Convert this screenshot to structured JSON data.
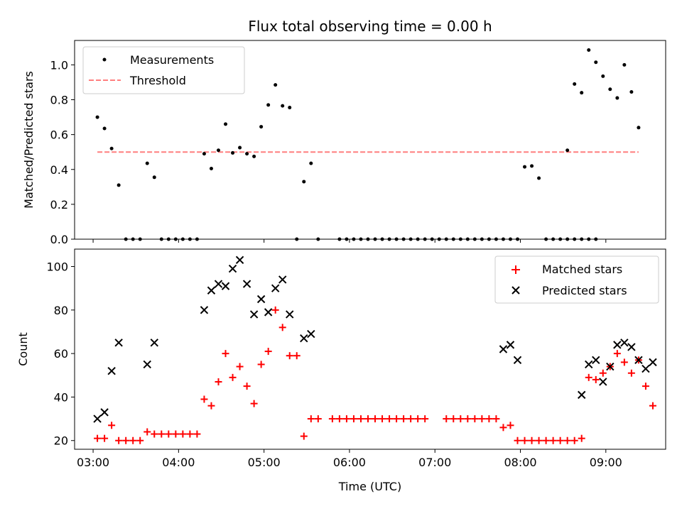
{
  "chart_data": [
    {
      "type": "scatter",
      "title": "Flux total observing time = 0.00 h",
      "xlabel": "",
      "ylabel": "Matched/Predicted stars",
      "x_unit": "time of day (UTC)",
      "xlim": [
        "02:47",
        "09:42"
      ],
      "ylim": [
        0,
        1.14
      ],
      "yticks": [
        "0.0",
        "0.2",
        "0.4",
        "0.6",
        "0.8",
        "1.0"
      ],
      "legend_position": "upper-left",
      "threshold": {
        "name": "Threshold",
        "value": 0.5,
        "color": "#ff7f7f",
        "style": "dashed",
        "x_range": [
          "03:03",
          "09:23"
        ]
      },
      "series": [
        {
          "name": "Measurements",
          "color": "#000000",
          "marker": "dot",
          "points": [
            [
              "03:03",
              0.7
            ],
            [
              "03:08",
              0.635
            ],
            [
              "03:13",
              0.52
            ],
            [
              "03:18",
              0.31
            ],
            [
              "03:23",
              0.0
            ],
            [
              "03:28",
              0.0
            ],
            [
              "03:33",
              0.0
            ],
            [
              "03:38",
              0.435
            ],
            [
              "03:43",
              0.355
            ],
            [
              "03:48",
              0.0
            ],
            [
              "03:53",
              0.0
            ],
            [
              "03:58",
              0.0
            ],
            [
              "04:03",
              0.0
            ],
            [
              "04:08",
              0.0
            ],
            [
              "04:13",
              0.0
            ],
            [
              "04:18",
              0.49
            ],
            [
              "04:23",
              0.405
            ],
            [
              "04:28",
              0.51
            ],
            [
              "04:33",
              0.66
            ],
            [
              "04:38",
              0.495
            ],
            [
              "04:43",
              0.525
            ],
            [
              "04:48",
              0.49
            ],
            [
              "04:53",
              0.475
            ],
            [
              "04:58",
              0.645
            ],
            [
              "05:03",
              0.77
            ],
            [
              "05:08",
              0.885
            ],
            [
              "05:13",
              0.765
            ],
            [
              "05:18",
              0.755
            ],
            [
              "05:23",
              0.0
            ],
            [
              "05:28",
              0.33
            ],
            [
              "05:33",
              0.435
            ],
            [
              "05:38",
              0.0
            ],
            [
              "05:53",
              0.0
            ],
            [
              "05:58",
              0.0
            ],
            [
              "06:03",
              0.0
            ],
            [
              "06:08",
              0.0
            ],
            [
              "06:13",
              0.0
            ],
            [
              "06:18",
              0.0
            ],
            [
              "06:23",
              0.0
            ],
            [
              "06:28",
              0.0
            ],
            [
              "06:33",
              0.0
            ],
            [
              "06:38",
              0.0
            ],
            [
              "06:43",
              0.0
            ],
            [
              "06:48",
              0.0
            ],
            [
              "06:53",
              0.0
            ],
            [
              "06:58",
              0.0
            ],
            [
              "07:03",
              0.0
            ],
            [
              "07:08",
              0.0
            ],
            [
              "07:13",
              0.0
            ],
            [
              "07:18",
              0.0
            ],
            [
              "07:23",
              0.0
            ],
            [
              "07:28",
              0.0
            ],
            [
              "07:33",
              0.0
            ],
            [
              "07:38",
              0.0
            ],
            [
              "07:43",
              0.0
            ],
            [
              "07:48",
              0.0
            ],
            [
              "07:53",
              0.0
            ],
            [
              "07:58",
              0.0
            ],
            [
              "08:03",
              0.415
            ],
            [
              "08:08",
              0.42
            ],
            [
              "08:13",
              0.35
            ],
            [
              "08:18",
              0.0
            ],
            [
              "08:23",
              0.0
            ],
            [
              "08:28",
              0.0
            ],
            [
              "08:33",
              0.0
            ],
            [
              "08:38",
              0.0
            ],
            [
              "08:43",
              0.0
            ],
            [
              "08:48",
              0.0
            ],
            [
              "08:53",
              0.0
            ],
            [
              "08:33",
              0.51
            ],
            [
              "08:38",
              0.89
            ],
            [
              "08:43",
              0.84
            ],
            [
              "08:48",
              1.085
            ],
            [
              "08:53",
              1.015
            ],
            [
              "08:58",
              0.935
            ],
            [
              "09:03",
              0.86
            ],
            [
              "09:08",
              0.81
            ],
            [
              "09:13",
              1.0
            ],
            [
              "09:18",
              0.845
            ],
            [
              "09:23",
              0.64
            ]
          ]
        }
      ]
    },
    {
      "type": "scatter",
      "title": "",
      "xlabel": "Time (UTC)",
      "ylabel": "Count",
      "x_unit": "time of day (UTC)",
      "xlim": [
        "02:47",
        "09:42"
      ],
      "ylim": [
        16,
        108
      ],
      "xticks": [
        "03:00",
        "04:00",
        "05:00",
        "06:00",
        "07:00",
        "08:00",
        "09:00"
      ],
      "yticks": [
        "20",
        "40",
        "60",
        "80",
        "100"
      ],
      "legend_position": "upper-right",
      "series": [
        {
          "name": "Matched stars",
          "color": "#ff0000",
          "marker": "plus",
          "points": [
            [
              "03:03",
              21
            ],
            [
              "03:08",
              21
            ],
            [
              "03:13",
              27
            ],
            [
              "03:18",
              20
            ],
            [
              "03:23",
              20
            ],
            [
              "03:28",
              20
            ],
            [
              "03:33",
              20
            ],
            [
              "03:38",
              24
            ],
            [
              "03:43",
              23
            ],
            [
              "03:48",
              23
            ],
            [
              "03:53",
              23
            ],
            [
              "03:58",
              23
            ],
            [
              "04:03",
              23
            ],
            [
              "04:08",
              23
            ],
            [
              "04:13",
              23
            ],
            [
              "04:18",
              39
            ],
            [
              "04:23",
              36
            ],
            [
              "04:28",
              47
            ],
            [
              "04:33",
              60
            ],
            [
              "04:38",
              49
            ],
            [
              "04:43",
              54
            ],
            [
              "04:48",
              45
            ],
            [
              "04:53",
              37
            ],
            [
              "04:58",
              55
            ],
            [
              "05:03",
              61
            ],
            [
              "05:08",
              80
            ],
            [
              "05:13",
              72
            ],
            [
              "05:18",
              59
            ],
            [
              "05:23",
              59
            ],
            [
              "05:28",
              22
            ],
            [
              "05:33",
              30
            ],
            [
              "05:38",
              30
            ],
            [
              "05:48",
              30
            ],
            [
              "05:53",
              30
            ],
            [
              "05:58",
              30
            ],
            [
              "06:03",
              30
            ],
            [
              "06:08",
              30
            ],
            [
              "06:13",
              30
            ],
            [
              "06:18",
              30
            ],
            [
              "06:23",
              30
            ],
            [
              "06:28",
              30
            ],
            [
              "06:33",
              30
            ],
            [
              "06:38",
              30
            ],
            [
              "06:43",
              30
            ],
            [
              "06:48",
              30
            ],
            [
              "06:53",
              30
            ],
            [
              "07:08",
              30
            ],
            [
              "07:13",
              30
            ],
            [
              "07:18",
              30
            ],
            [
              "07:23",
              30
            ],
            [
              "07:28",
              30
            ],
            [
              "07:33",
              30
            ],
            [
              "07:38",
              30
            ],
            [
              "07:43",
              30
            ],
            [
              "07:48",
              26
            ],
            [
              "07:53",
              27
            ],
            [
              "07:58",
              20
            ],
            [
              "08:03",
              20
            ],
            [
              "08:08",
              20
            ],
            [
              "08:13",
              20
            ],
            [
              "08:18",
              20
            ],
            [
              "08:23",
              20
            ],
            [
              "08:28",
              20
            ],
            [
              "08:33",
              20
            ],
            [
              "08:38",
              20
            ],
            [
              "08:43",
              21
            ],
            [
              "08:48",
              49
            ],
            [
              "08:53",
              48
            ],
            [
              "08:58",
              51
            ],
            [
              "09:03",
              54
            ],
            [
              "09:08",
              60
            ],
            [
              "09:13",
              56
            ],
            [
              "09:18",
              51
            ],
            [
              "09:23",
              57
            ],
            [
              "09:28",
              45
            ],
            [
              "09:33",
              36
            ]
          ]
        },
        {
          "name": "Predicted stars",
          "color": "#000000",
          "marker": "x",
          "points": [
            [
              "03:03",
              30
            ],
            [
              "03:08",
              33
            ],
            [
              "03:13",
              52
            ],
            [
              "03:18",
              65
            ],
            [
              "03:38",
              55
            ],
            [
              "03:43",
              65
            ],
            [
              "04:18",
              80
            ],
            [
              "04:23",
              89
            ],
            [
              "04:28",
              92
            ],
            [
              "04:33",
              91
            ],
            [
              "04:38",
              99
            ],
            [
              "04:43",
              103
            ],
            [
              "04:48",
              92
            ],
            [
              "04:53",
              78
            ],
            [
              "04:58",
              85
            ],
            [
              "05:03",
              79
            ],
            [
              "05:08",
              90
            ],
            [
              "05:13",
              94
            ],
            [
              "05:18",
              78
            ],
            [
              "05:28",
              67
            ],
            [
              "05:33",
              69
            ],
            [
              "07:48",
              62
            ],
            [
              "07:53",
              64
            ],
            [
              "07:58",
              57
            ],
            [
              "08:43",
              41
            ],
            [
              "08:48",
              55
            ],
            [
              "08:53",
              57
            ],
            [
              "08:58",
              47
            ],
            [
              "09:03",
              54
            ],
            [
              "09:08",
              64
            ],
            [
              "09:13",
              65
            ],
            [
              "09:18",
              63
            ],
            [
              "09:23",
              57
            ],
            [
              "09:28",
              53
            ],
            [
              "09:33",
              56
            ]
          ]
        }
      ]
    }
  ]
}
